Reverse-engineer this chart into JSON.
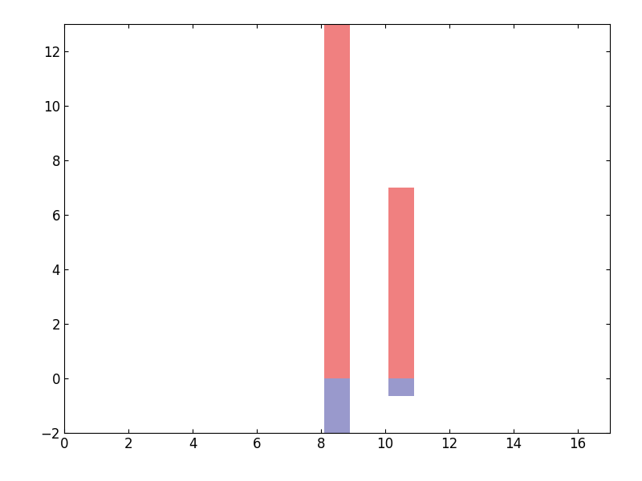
{
  "bar_positions": [
    8.5,
    10.5
  ],
  "bar_width": 0.8,
  "positive_values": [
    13,
    7
  ],
  "negative_values": [
    -2,
    -0.65
  ],
  "positive_color": "#F08080",
  "negative_color": "#9999CC",
  "xlim": [
    0,
    17
  ],
  "ylim": [
    -2,
    13
  ],
  "xticks": [
    0,
    2,
    4,
    6,
    8,
    10,
    12,
    14,
    16
  ],
  "yticks": [
    -2,
    0,
    2,
    4,
    6,
    8,
    10,
    12
  ],
  "figsize": [
    8.0,
    6.0
  ],
  "dpi": 100,
  "background_color": "#ffffff",
  "tick_fontsize": 12
}
